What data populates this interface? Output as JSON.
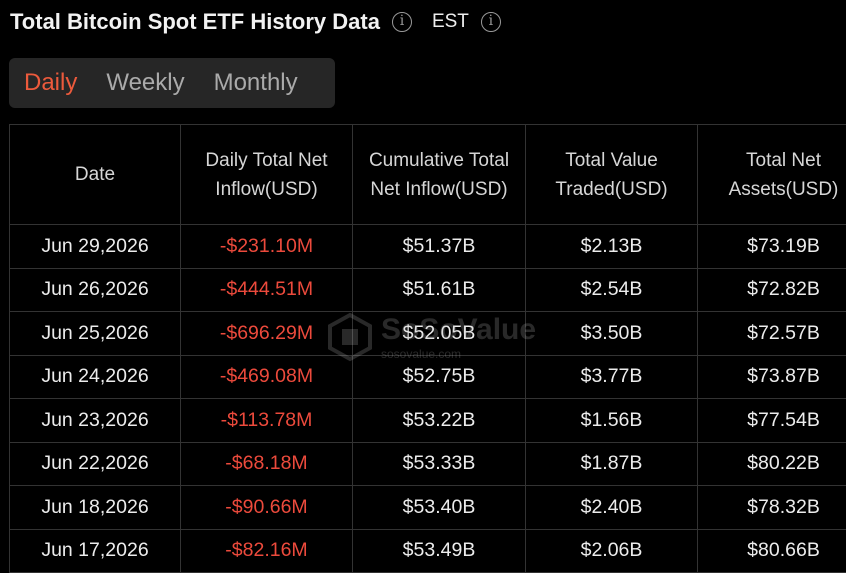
{
  "header": {
    "title": "Total Bitcoin Spot ETF History Data",
    "timezone": "EST"
  },
  "tabs": [
    "Daily",
    "Weekly",
    "Monthly"
  ],
  "watermark": {
    "brand": "SoSoValue",
    "site": "sosovalue.com"
  },
  "table": {
    "columns": [
      "Date",
      "Daily Total Net Inflow(USD)",
      "Cumulative Total Net Inflow(USD)",
      "Total Value Traded(USD)",
      "Total Net Assets(USD)"
    ],
    "rows": [
      [
        "Jun 29,2026",
        "-$231.10M",
        "$51.37B",
        "$2.13B",
        "$73.19B"
      ],
      [
        "Jun 26,2026",
        "-$444.51M",
        "$51.61B",
        "$2.54B",
        "$72.82B"
      ],
      [
        "Jun 25,2026",
        "-$696.29M",
        "$52.05B",
        "$3.50B",
        "$72.57B"
      ],
      [
        "Jun 24,2026",
        "-$469.08M",
        "$52.75B",
        "$3.77B",
        "$73.87B"
      ],
      [
        "Jun 23,2026",
        "-$113.78M",
        "$53.22B",
        "$1.56B",
        "$77.54B"
      ],
      [
        "Jun 22,2026",
        "-$68.18M",
        "$53.33B",
        "$1.87B",
        "$80.22B"
      ],
      [
        "Jun 18,2026",
        "-$90.66M",
        "$53.40B",
        "$2.40B",
        "$78.32B"
      ],
      [
        "Jun 17,2026",
        "-$82.16M",
        "$53.49B",
        "$2.06B",
        "$80.66B"
      ]
    ]
  }
}
